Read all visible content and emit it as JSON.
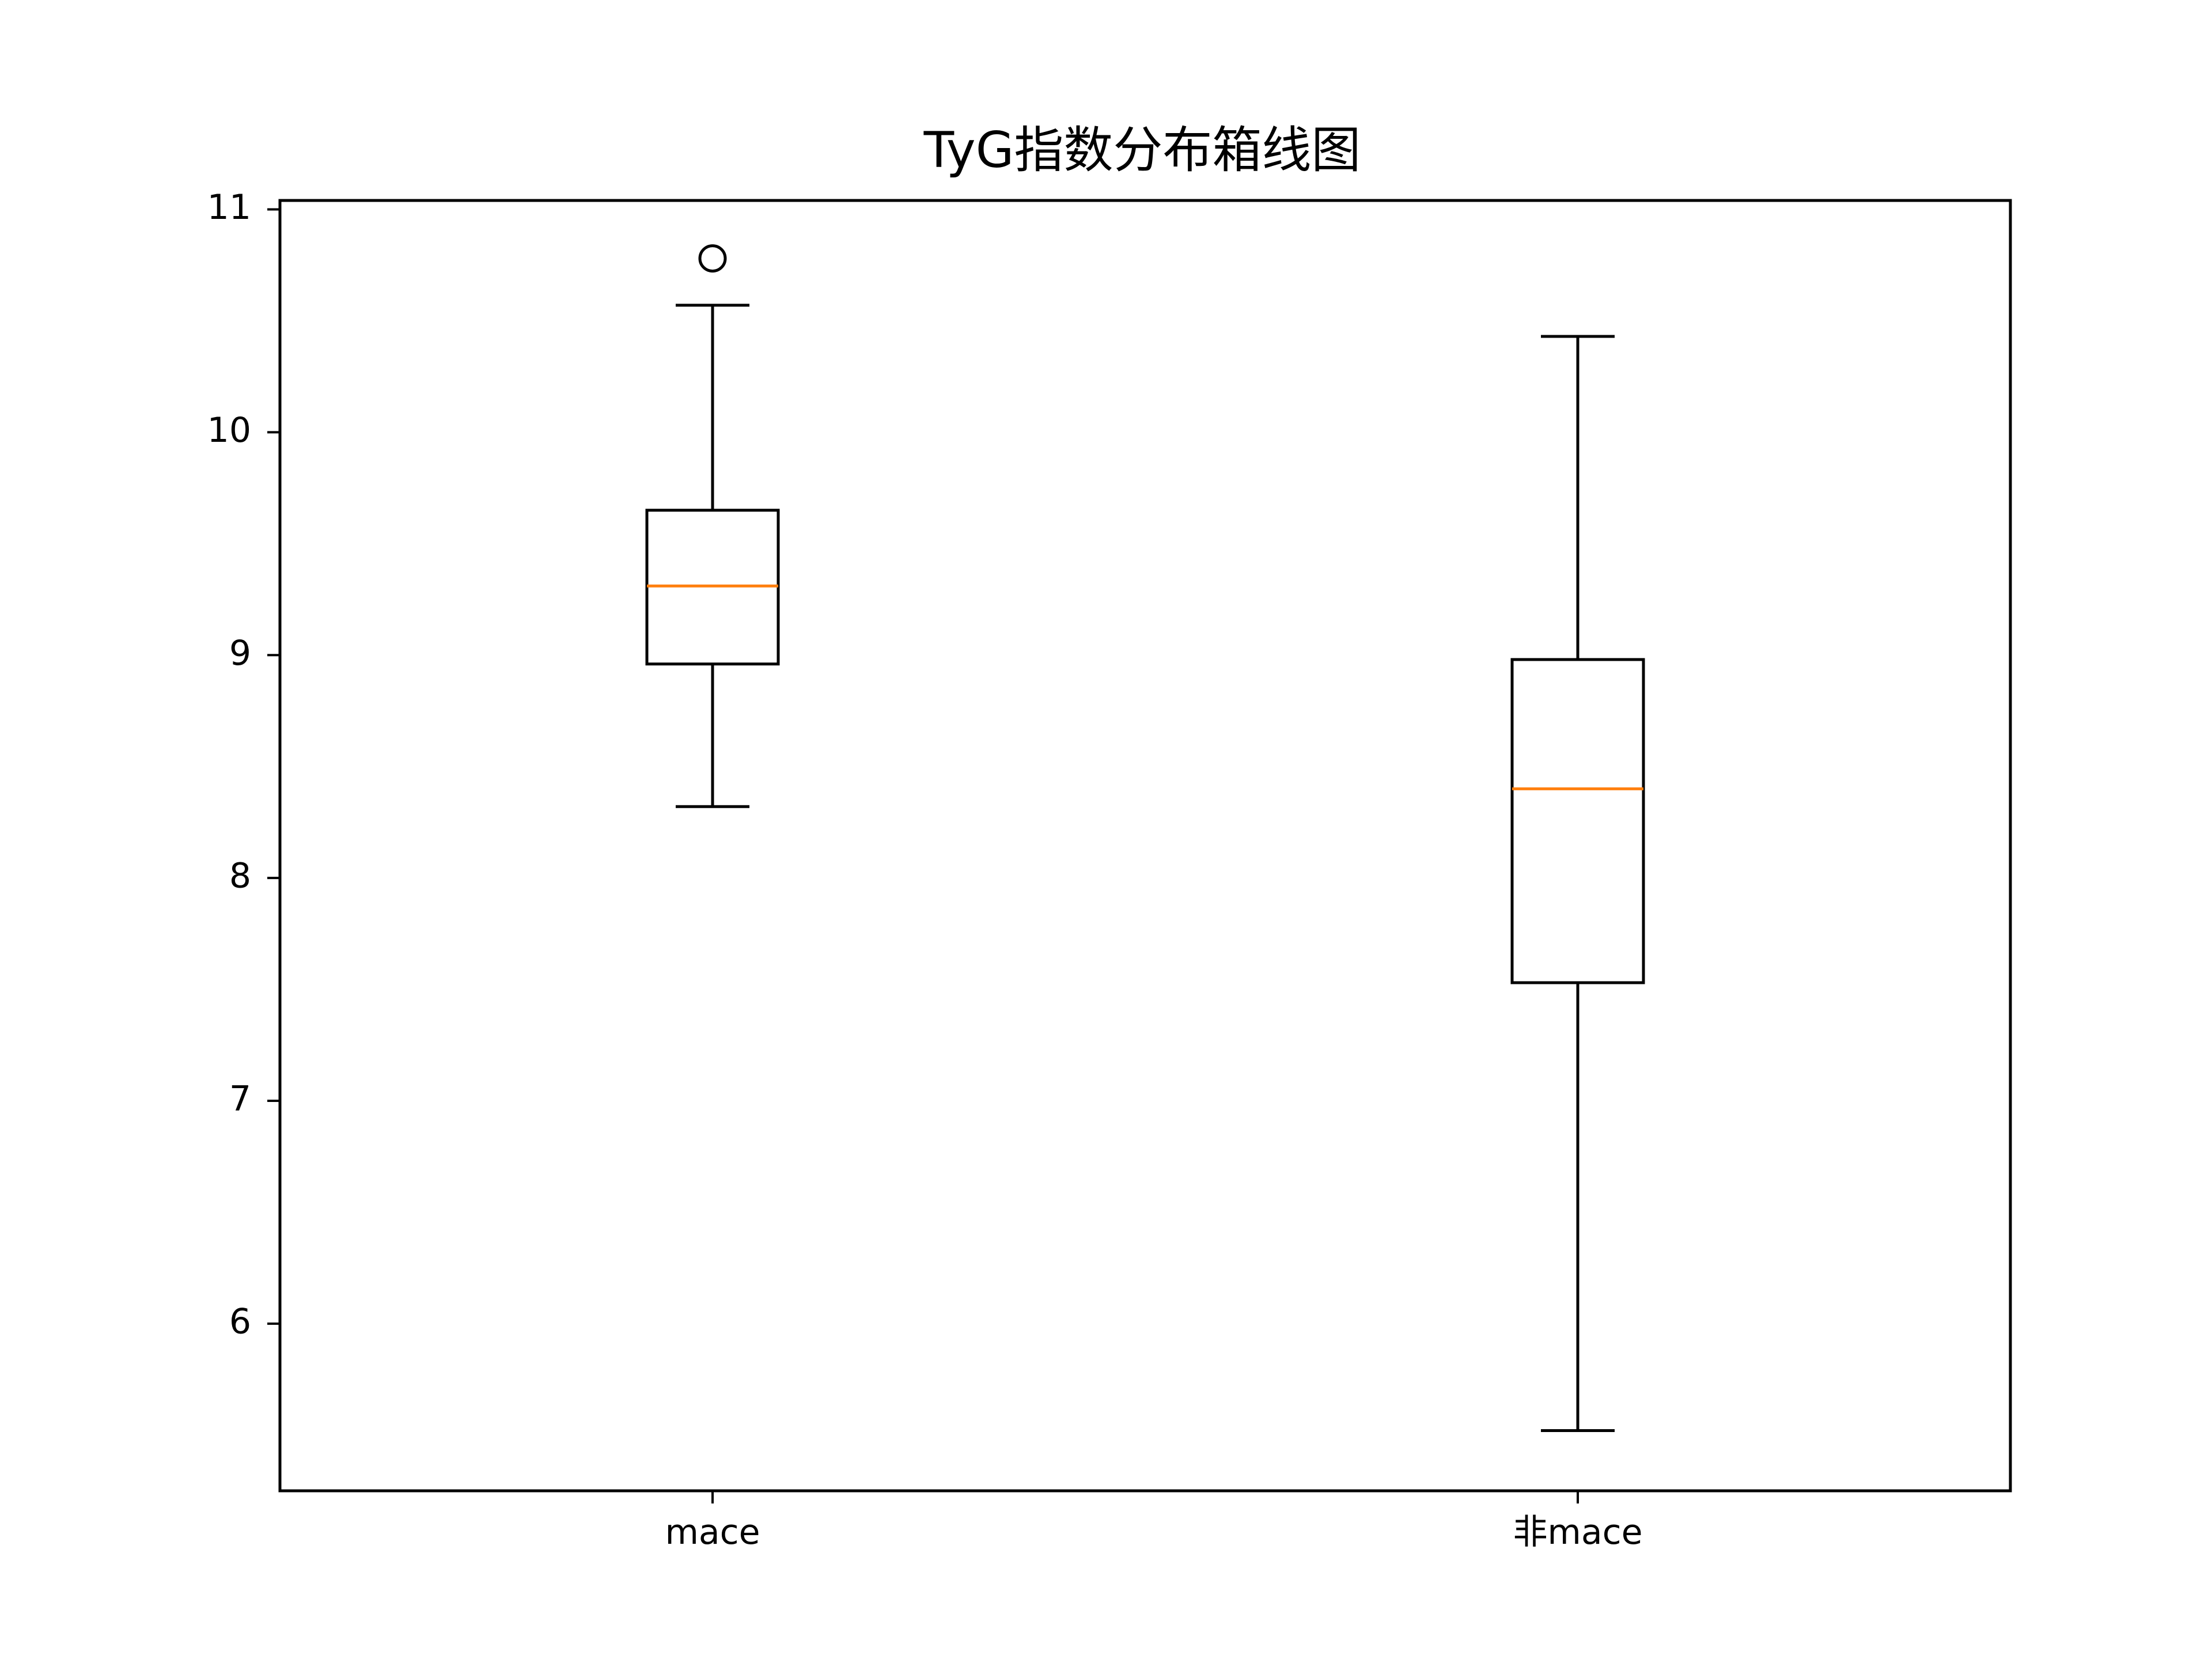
{
  "chart_data": {
    "type": "box",
    "title": "TyG指数分布箱线图",
    "xlabel": "",
    "ylabel": "",
    "categories": [
      "mace",
      "非mace"
    ],
    "ylim": [
      5.25,
      11.04
    ],
    "yticks": [
      6,
      7,
      8,
      9,
      10,
      11
    ],
    "ytick_labels": [
      "6",
      "7",
      "8",
      "9",
      "10",
      "11"
    ],
    "grid": false,
    "legend": "none",
    "series": [
      {
        "category": "mace",
        "whisker_low": 8.32,
        "q1": 8.96,
        "median": 9.31,
        "q3": 9.65,
        "whisker_high": 10.57,
        "outliers": [
          10.78
        ]
      },
      {
        "category": "非mace",
        "whisker_low": 5.52,
        "q1": 7.53,
        "median": 8.4,
        "q3": 8.98,
        "whisker_high": 10.43,
        "outliers": []
      }
    ],
    "colors": {
      "box": "#000000",
      "median": "#ff7f0e",
      "background": "#ffffff"
    }
  }
}
